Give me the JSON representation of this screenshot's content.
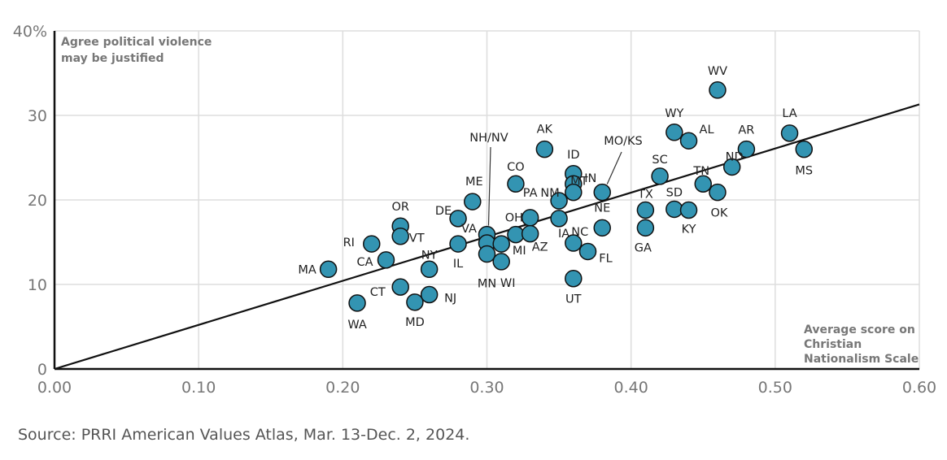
{
  "chart_data": {
    "type": "scatter",
    "y_axis_corner_label": [
      "Agree political violence",
      "may be justified"
    ],
    "x_axis_corner_label": [
      "Average score on",
      "Christian",
      "Nationalism Scale"
    ],
    "xlim": [
      0,
      0.6
    ],
    "ylim": [
      0,
      40
    ],
    "x_ticks": [
      "0.00",
      "0.10",
      "0.20",
      "0.30",
      "0.40",
      "0.50",
      "0.60"
    ],
    "y_ticks": [
      "0",
      "10",
      "20",
      "30",
      "40%"
    ],
    "grid": true,
    "point_color": "#3394b2",
    "trend_line": {
      "x": [
        0,
        0.6
      ],
      "y": [
        0,
        31.3
      ]
    },
    "points": [
      {
        "label": "MA",
        "x": 0.19,
        "y": 11.8
      },
      {
        "label": "WA",
        "x": 0.21,
        "y": 7.8
      },
      {
        "label": "RI",
        "x": 0.22,
        "y": 14.8
      },
      {
        "label": "CA",
        "x": 0.23,
        "y": 12.9
      },
      {
        "label": "OR",
        "x": 0.24,
        "y": 16.9
      },
      {
        "label": "VT",
        "x": 0.24,
        "y": 15.7
      },
      {
        "label": "CT",
        "x": 0.24,
        "y": 9.7
      },
      {
        "label": "MD",
        "x": 0.25,
        "y": 7.9
      },
      {
        "label": "NY",
        "x": 0.26,
        "y": 11.8
      },
      {
        "label": "NJ",
        "x": 0.26,
        "y": 8.8
      },
      {
        "label": "DE",
        "x": 0.28,
        "y": 17.8
      },
      {
        "label": "IL",
        "x": 0.28,
        "y": 14.8
      },
      {
        "label": "ME",
        "x": 0.29,
        "y": 19.8
      },
      {
        "label": "NH/NV",
        "x": 0.3,
        "y": 15.9
      },
      {
        "label": "VA",
        "x": 0.3,
        "y": 14.9
      },
      {
        "label": "MN",
        "x": 0.3,
        "y": 13.6
      },
      {
        "label": "WI",
        "x": 0.31,
        "y": 12.7
      },
      {
        "label": "MI",
        "x": 0.31,
        "y": 14.8
      },
      {
        "label": "OH",
        "x": 0.32,
        "y": 15.9
      },
      {
        "label": "CO",
        "x": 0.32,
        "y": 21.9
      },
      {
        "label": "PA",
        "x": 0.33,
        "y": 17.9
      },
      {
        "label": "AZ",
        "x": 0.33,
        "y": 16.0
      },
      {
        "label": "AK",
        "x": 0.34,
        "y": 26.0
      },
      {
        "label": "NM",
        "x": 0.35,
        "y": 19.9
      },
      {
        "label": "IA",
        "x": 0.35,
        "y": 17.8
      },
      {
        "label": "ID",
        "x": 0.36,
        "y": 23.1
      },
      {
        "label": "IN",
        "x": 0.36,
        "y": 21.9
      },
      {
        "label": "MT",
        "x": 0.36,
        "y": 20.9
      },
      {
        "label": "NC",
        "x": 0.36,
        "y": 14.9
      },
      {
        "label": "UT",
        "x": 0.36,
        "y": 10.7
      },
      {
        "label": "FL",
        "x": 0.37,
        "y": 13.9
      },
      {
        "label": "MO/KS",
        "x": 0.38,
        "y": 20.9
      },
      {
        "label": "NE",
        "x": 0.38,
        "y": 16.7
      },
      {
        "label": "TX",
        "x": 0.41,
        "y": 18.8
      },
      {
        "label": "GA",
        "x": 0.41,
        "y": 16.7
      },
      {
        "label": "SC",
        "x": 0.42,
        "y": 22.8
      },
      {
        "label": "WY",
        "x": 0.43,
        "y": 28.0
      },
      {
        "label": "SD",
        "x": 0.43,
        "y": 18.9
      },
      {
        "label": "AL",
        "x": 0.44,
        "y": 27.0
      },
      {
        "label": "KY",
        "x": 0.44,
        "y": 18.8
      },
      {
        "label": "TN",
        "x": 0.45,
        "y": 21.9
      },
      {
        "label": "WV",
        "x": 0.46,
        "y": 33.0
      },
      {
        "label": "OK",
        "x": 0.46,
        "y": 20.9
      },
      {
        "label": "ND",
        "x": 0.47,
        "y": 23.9
      },
      {
        "label": "AR",
        "x": 0.48,
        "y": 26.0
      },
      {
        "label": "LA",
        "x": 0.51,
        "y": 27.9
      },
      {
        "label": "MS",
        "x": 0.52,
        "y": 26.0
      }
    ]
  },
  "source": "Source: PRRI American Values Atlas, Mar. 13-Dec. 2, 2024."
}
